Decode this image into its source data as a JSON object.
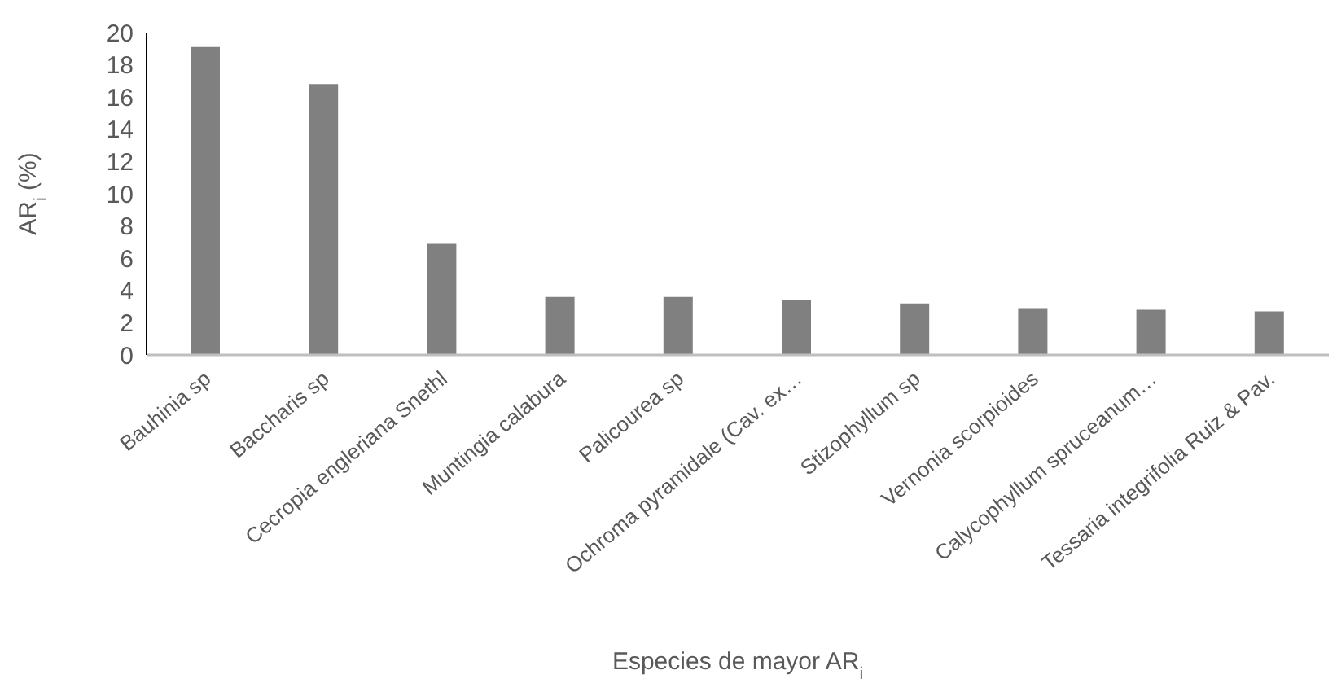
{
  "chart_data": {
    "type": "bar",
    "xlabel": "Especies de mayor AR$_{i}$",
    "ylabel": "AR$_{i}$ (%)",
    "categories": [
      "Bauhinia sp",
      "Baccharis sp",
      "Cecropia engleriana Snethl",
      "Muntingia calabura",
      "Palicourea sp",
      "Ochroma pyramidale (Cav. ex…",
      "Stizophyllum sp",
      "Vernonia scorpioides",
      "Calycophyllum spruceanum…",
      "Tessaria integrifolia Ruiz & Pav."
    ],
    "values": [
      19.1,
      16.8,
      6.9,
      3.6,
      3.6,
      3.4,
      3.2,
      2.9,
      2.8,
      2.7
    ],
    "color": "#808080",
    "ylim": [
      0,
      20
    ],
    "yticks": [
      0,
      2,
      4,
      6,
      8,
      10,
      12,
      14,
      16,
      18,
      20
    ],
    "grid": false,
    "legend": false
  }
}
